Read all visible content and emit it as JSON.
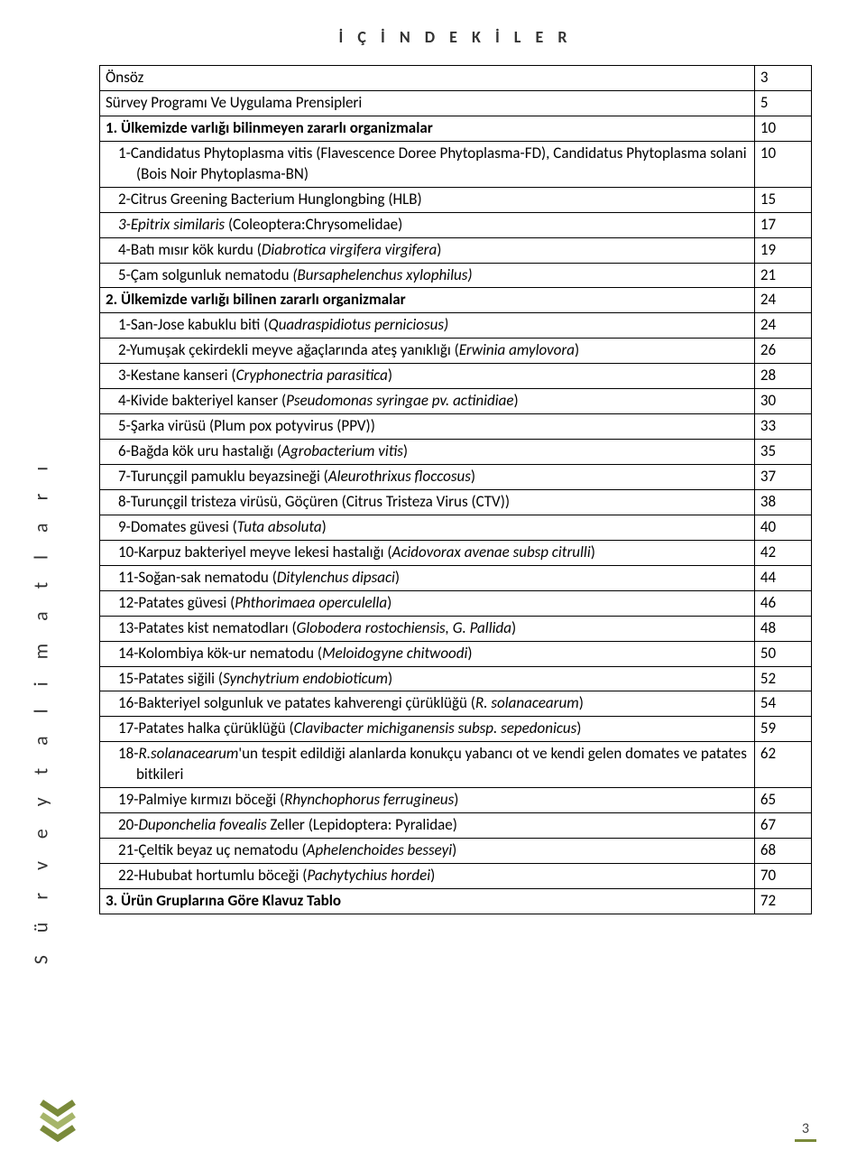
{
  "heading": "İ Ç İ N D E K İ L E R",
  "side_label": "S ü r v e y   t a l i m a t l a r ı",
  "page_number": "3",
  "colors": {
    "olive": "#7a8a3a",
    "olive_light": "#a6b56a",
    "text": "#333333",
    "border": "#000000"
  },
  "rows": [
    {
      "title": [
        [
          "Önsöz",
          false,
          false
        ]
      ],
      "page": "3",
      "indent": 0
    },
    {
      "title": [
        [
          "Sürvey Programı Ve Uygulama Prensipleri",
          false,
          false
        ]
      ],
      "page": "5",
      "indent": 0
    },
    {
      "title": [
        [
          "1. Ülkemizde varlığı bilinmeyen zararlı organizmalar",
          true,
          false
        ]
      ],
      "page": "10",
      "indent": 0
    },
    {
      "title": [
        [
          "1-Candidatus Phytoplasma vitis (Flavescence  Doree Phytoplasma-FD), Candidatus Phytoplasma solani (Bois Noir Phytoplasma-BN)",
          false,
          false
        ]
      ],
      "page": "10",
      "indent": 1
    },
    {
      "title": [
        [
          "2-Citrus Greening Bacterium Hunglongbing (HLB)",
          false,
          false
        ]
      ],
      "page": "15",
      "indent": 1
    },
    {
      "title": [
        [
          "3-",
          false,
          true
        ],
        [
          "Epitrix similaris",
          false,
          true
        ],
        [
          " (Coleoptera:Chrysomelidae)",
          false,
          false
        ]
      ],
      "page": "17",
      "indent": 1
    },
    {
      "title": [
        [
          "4-Batı mısır kök kurdu (",
          false,
          false
        ],
        [
          "Diabrotica virgifera virgifera",
          false,
          true
        ],
        [
          ")",
          false,
          false
        ]
      ],
      "page": "19",
      "indent": 1
    },
    {
      "title": [
        [
          "5-Çam solgunluk nematodu  ",
          false,
          false
        ],
        [
          "(Bursaphelenchus xylophilus)",
          false,
          true
        ]
      ],
      "page": "21",
      "indent": 1
    },
    {
      "title": [
        [
          "2. Ülkemizde varlığı bilinen zararlı organizmalar",
          true,
          false
        ]
      ],
      "page": "24",
      "indent": 0
    },
    {
      "title": [
        [
          "1-San-Jose kabuklu biti (",
          false,
          false
        ],
        [
          "Quadraspidiotus perniciosus)",
          false,
          true
        ]
      ],
      "page": "24",
      "indent": 1
    },
    {
      "title": [
        [
          "2-Yumuşak çekirdekli meyve ağaçlarında ateş yanıklığı (",
          false,
          false
        ],
        [
          "Erwinia amylovora",
          false,
          true
        ],
        [
          ")",
          false,
          false
        ]
      ],
      "page": "26",
      "indent": 1
    },
    {
      "title": [
        [
          "3-Kestane kanseri (",
          false,
          false
        ],
        [
          "Cryphonectria parasitica",
          false,
          true
        ],
        [
          ")",
          false,
          false
        ]
      ],
      "page": "28",
      "indent": 1
    },
    {
      "title": [
        [
          "4-Kivide bakteriyel kanser (",
          false,
          false
        ],
        [
          "Pseudomonas syringae pv. actinidiae",
          false,
          true
        ],
        [
          ")",
          false,
          false
        ]
      ],
      "page": "30",
      "indent": 1
    },
    {
      "title": [
        [
          "5-Şarka virüsü (Plum pox potyvirus (PPV))",
          false,
          false
        ]
      ],
      "page": "33",
      "indent": 1
    },
    {
      "title": [
        [
          "6-Bağda kök uru hastalığı (",
          false,
          false
        ],
        [
          "Agrobacterium vitis",
          false,
          true
        ],
        [
          ")",
          false,
          false
        ]
      ],
      "page": "35",
      "indent": 1
    },
    {
      "title": [
        [
          "7-Turunçgil pamuklu beyazsineği (",
          false,
          false
        ],
        [
          "Aleurothrixus floccosus",
          false,
          true
        ],
        [
          ")",
          false,
          false
        ]
      ],
      "page": "37",
      "indent": 1
    },
    {
      "title": [
        [
          "8-Turunçgil tristeza virüsü, Göçüren (Citrus Tristeza Virus (CTV))",
          false,
          false
        ]
      ],
      "page": "38",
      "indent": 1
    },
    {
      "title": [
        [
          "9-Domates güvesi (",
          false,
          false
        ],
        [
          "Tuta absoluta",
          false,
          true
        ],
        [
          ")",
          false,
          false
        ]
      ],
      "page": "40",
      "indent": 1
    },
    {
      "title": [
        [
          "10-Karpuz bakteriyel meyve lekesi hastalığı (",
          false,
          false
        ],
        [
          "Acidovorax avenae subsp citrulli",
          false,
          true
        ],
        [
          ")",
          false,
          false
        ]
      ],
      "page": "42",
      "indent": 1
    },
    {
      "title": [
        [
          "11-Soğan-sak nematodu (",
          false,
          false
        ],
        [
          "Ditylenchus dipsaci",
          false,
          true
        ],
        [
          ")",
          false,
          false
        ]
      ],
      "page": "44",
      "indent": 1
    },
    {
      "title": [
        [
          "12-Patates güvesi (",
          false,
          false
        ],
        [
          "Phthorimaea operculella",
          false,
          true
        ],
        [
          ")",
          false,
          false
        ]
      ],
      "page": "46",
      "indent": 1
    },
    {
      "title": [
        [
          "13-Patates kist nematodları (",
          false,
          false
        ],
        [
          "Globodera rostochiensis, G. Pallida",
          false,
          true
        ],
        [
          ")",
          false,
          false
        ]
      ],
      "page": "48",
      "indent": 1
    },
    {
      "title": [
        [
          "14-Kolombiya kök-ur nematodu (",
          false,
          false
        ],
        [
          "Meloidogyne chitwoodi",
          false,
          true
        ],
        [
          ")",
          false,
          false
        ]
      ],
      "page": "50",
      "indent": 1
    },
    {
      "title": [
        [
          "15-Patates siğili (",
          false,
          false
        ],
        [
          "Synchytrium endobioticum",
          false,
          true
        ],
        [
          ")",
          false,
          false
        ]
      ],
      "page": "52",
      "indent": 1
    },
    {
      "title": [
        [
          "16-Bakteriyel solgunluk ve patates kahverengi çürüklüğü (",
          false,
          false
        ],
        [
          "R. solanacearum",
          false,
          true
        ],
        [
          ")",
          false,
          false
        ]
      ],
      "page": "54",
      "indent": 1
    },
    {
      "title": [
        [
          "17-Patates halka çürüklüğü (",
          false,
          false
        ],
        [
          "Clavibacter michiganensis subsp. sepedonicus",
          false,
          true
        ],
        [
          ")",
          false,
          false
        ]
      ],
      "page": "59",
      "indent": 1
    },
    {
      "title": [
        [
          "18-",
          false,
          false
        ],
        [
          "R.solanacearum",
          false,
          true
        ],
        [
          "'un tespit edildiği alanlarda konukçu yabancı ot ve kendi gelen domates ve patates bitkileri",
          false,
          false
        ]
      ],
      "page": "62",
      "indent": 1
    },
    {
      "title": [
        [
          "19-Palmiye kırmızı böceği (",
          false,
          false
        ],
        [
          "Rhynchophorus ferrugineus",
          false,
          true
        ],
        [
          ")",
          false,
          false
        ]
      ],
      "page": "65",
      "indent": 1
    },
    {
      "title": [
        [
          "20-",
          false,
          false
        ],
        [
          "Duponchelia fovealis",
          false,
          true
        ],
        [
          " Zeller (Lepidoptera: Pyralidae)",
          false,
          false
        ]
      ],
      "page": "67",
      "indent": 1
    },
    {
      "title": [
        [
          "21-Çeltik beyaz uç nematodu (",
          false,
          false
        ],
        [
          "Aphelenchoides besseyi",
          false,
          true
        ],
        [
          ")",
          false,
          false
        ]
      ],
      "page": "68",
      "indent": 1
    },
    {
      "title": [
        [
          "22-Hububat hortumlu böceği (",
          false,
          false
        ],
        [
          "Pachytychius hordei",
          false,
          true
        ],
        [
          ")",
          false,
          false
        ]
      ],
      "page": "70",
      "indent": 1
    },
    {
      "title": [
        [
          "3. Ürün Gruplarına Göre Klavuz Tablo",
          true,
          false
        ]
      ],
      "page": "72",
      "indent": 0
    }
  ]
}
